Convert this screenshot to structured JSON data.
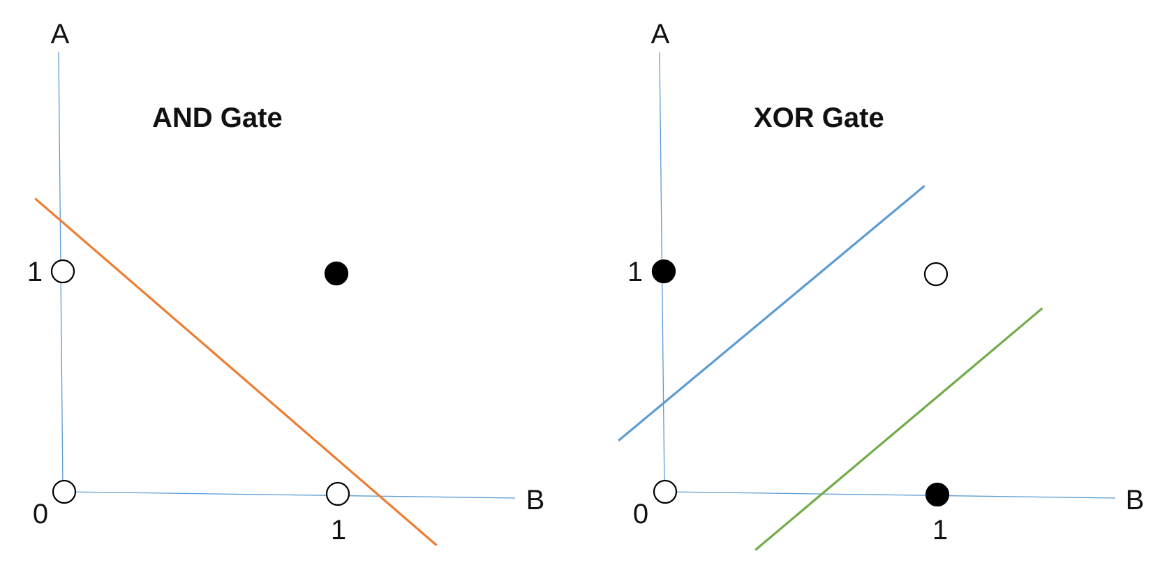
{
  "panels": [
    {
      "title": "AND Gate",
      "axis_a_label": "A",
      "axis_b_label": "B",
      "origin_label": "0",
      "a_one_label": "1",
      "b_one_label": "1",
      "axis_color": "#5b9bd5",
      "points": [
        {
          "b": 0,
          "a": 0,
          "filled": false
        },
        {
          "b": 0,
          "a": 1,
          "filled": false
        },
        {
          "b": 1,
          "a": 0,
          "filled": false
        },
        {
          "b": 1,
          "a": 1,
          "filled": true
        }
      ],
      "separators": [
        {
          "color": "#ed7d31",
          "from": {
            "b": -0.1,
            "a": 1.33
          },
          "to": {
            "b": 1.36,
            "a": -0.23
          }
        }
      ]
    },
    {
      "title": "XOR Gate",
      "axis_a_label": "A",
      "axis_b_label": "B",
      "origin_label": "0",
      "a_one_label": "1",
      "b_one_label": "1",
      "axis_color": "#5b9bd5",
      "points": [
        {
          "b": 0,
          "a": 0,
          "filled": false
        },
        {
          "b": 0,
          "a": 1,
          "filled": true
        },
        {
          "b": 1,
          "a": 0,
          "filled": true
        },
        {
          "b": 1,
          "a": 1,
          "filled": false
        }
      ],
      "separators": [
        {
          "color": "#5b9bd5",
          "from": {
            "b": -0.17,
            "a": 0.23
          },
          "to": {
            "b": 0.96,
            "a": 1.4
          }
        },
        {
          "color": "#70ad47",
          "from": {
            "b": 0.33,
            "a": -0.26
          },
          "to": {
            "b": 1.39,
            "a": 0.85
          }
        }
      ]
    }
  ]
}
